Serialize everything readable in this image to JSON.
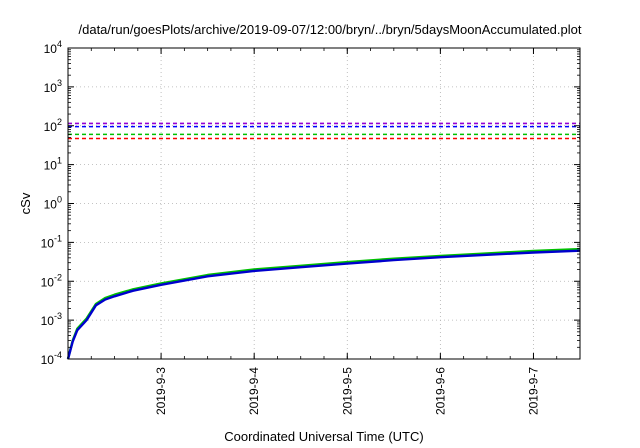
{
  "chart_data": {
    "type": "line",
    "title": "/data/run/goesPlots/archive/2019-09-07/12:00/bryn/../bryn/5daysMoonAccumulated.plot",
    "xlabel": "Coordinated Universal Time (UTC)",
    "ylabel": "cSv",
    "y_scale": "log",
    "ylim": [
      0.0001,
      10000
    ],
    "xlim": [
      "2019-09-02T00:00",
      "2019-09-07T12:00"
    ],
    "grid": true,
    "legend": "none",
    "y_ticks": [
      {
        "value": 0.0001,
        "base": "10",
        "exp": "-4"
      },
      {
        "value": 0.001,
        "base": "10",
        "exp": "-3"
      },
      {
        "value": 0.01,
        "base": "10",
        "exp": "-2"
      },
      {
        "value": 0.1,
        "base": "10",
        "exp": "-1"
      },
      {
        "value": 1,
        "base": "10",
        "exp": "0"
      },
      {
        "value": 10,
        "base": "10",
        "exp": "1"
      },
      {
        "value": 100,
        "base": "10",
        "exp": "2"
      },
      {
        "value": 1000,
        "base": "10",
        "exp": "3"
      },
      {
        "value": 10000,
        "base": "10",
        "exp": "4"
      }
    ],
    "x_ticks": [
      "2019-9-3",
      "2019-9-4",
      "2019-9-5",
      "2019-9-6",
      "2019-9-7"
    ],
    "thresholds": [
      {
        "value": 115,
        "color": "#9400d3",
        "style": "dashed"
      },
      {
        "value": 95,
        "color": "#0000ff",
        "style": "dashed"
      },
      {
        "value": 60,
        "color": "#00c000",
        "style": "dashed"
      },
      {
        "value": 47,
        "color": "#ff0000",
        "style": "dashed"
      }
    ],
    "series": [
      {
        "color": "#00c000",
        "x": [
          "2019-09-02T00:00",
          "2019-09-02T01:12",
          "2019-09-02T02:24",
          "2019-09-02T04:48",
          "2019-09-02T07:12",
          "2019-09-02T09:36",
          "2019-09-02T12:00",
          "2019-09-02T16:48",
          "2019-09-03T00:00",
          "2019-09-03T12:00",
          "2019-09-04T00:00",
          "2019-09-04T12:00",
          "2019-09-05T00:00",
          "2019-09-05T12:00",
          "2019-09-06T00:00",
          "2019-09-06T12:00",
          "2019-09-07T00:00",
          "2019-09-07T12:00"
        ],
        "y": [
          0.0001,
          0.0003,
          0.0006,
          0.0011,
          0.0026,
          0.0037,
          0.0045,
          0.0062,
          0.0088,
          0.0145,
          0.02,
          0.025,
          0.031,
          0.038,
          0.045,
          0.052,
          0.06,
          0.067
        ]
      },
      {
        "color": "#0000cd",
        "x": [
          "2019-09-02T00:00",
          "2019-09-02T01:12",
          "2019-09-02T02:24",
          "2019-09-02T04:48",
          "2019-09-02T07:12",
          "2019-09-02T09:36",
          "2019-09-02T12:00",
          "2019-09-02T16:48",
          "2019-09-03T00:00",
          "2019-09-03T12:00",
          "2019-09-04T00:00",
          "2019-09-04T12:00",
          "2019-09-05T00:00",
          "2019-09-05T12:00",
          "2019-09-06T00:00",
          "2019-09-06T12:00",
          "2019-09-07T00:00",
          "2019-09-07T12:00"
        ],
        "y": [
          0.0001,
          0.00028,
          0.00055,
          0.001,
          0.0024,
          0.0034,
          0.0041,
          0.0057,
          0.0081,
          0.0134,
          0.0185,
          0.023,
          0.0285,
          0.035,
          0.0415,
          0.048,
          0.055,
          0.061
        ]
      }
    ]
  }
}
